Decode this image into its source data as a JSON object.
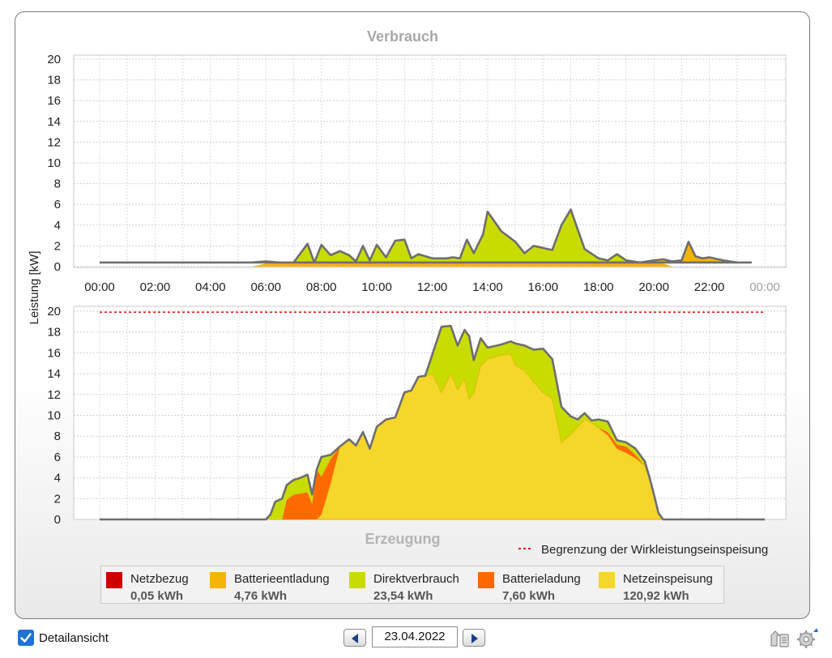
{
  "chart_data": [
    {
      "type": "area",
      "title": "Verbrauch",
      "ylabel": "Leistung [kW]",
      "ylim": [
        0,
        20
      ],
      "yticks": [
        "0",
        "2",
        "4",
        "6",
        "8",
        "10",
        "12",
        "14",
        "16",
        "18",
        "20"
      ],
      "xlim": [
        "00:00",
        "24:00"
      ],
      "xticks": [
        "00:00",
        "02:00",
        "04:00",
        "06:00",
        "08:00",
        "10:00",
        "12:00",
        "14:00",
        "16:00",
        "18:00",
        "20:00",
        "22:00",
        "00:00"
      ],
      "grid": true,
      "stacked": true,
      "x": [
        "00:00",
        "00:30",
        "01:00",
        "01:30",
        "02:00",
        "02:30",
        "03:00",
        "03:30",
        "04:00",
        "04:30",
        "05:00",
        "05:30",
        "06:00",
        "06:30",
        "07:00",
        "07:30",
        "07:45",
        "08:00",
        "08:20",
        "08:40",
        "09:00",
        "09:15",
        "09:30",
        "09:45",
        "10:00",
        "10:20",
        "10:40",
        "11:00",
        "11:15",
        "11:30",
        "12:00",
        "12:30",
        "12:45",
        "13:00",
        "13:15",
        "13:30",
        "13:50",
        "14:00",
        "14:30",
        "15:00",
        "15:20",
        "15:40",
        "16:00",
        "16:20",
        "16:40",
        "17:00",
        "17:30",
        "18:00",
        "18:20",
        "18:40",
        "19:00",
        "19:30",
        "20:00",
        "20:20",
        "20:40",
        "21:00",
        "21:15",
        "21:30",
        "21:45",
        "22:00",
        "22:30",
        "23:00",
        "23:30",
        "00:00"
      ],
      "series": [
        {
          "name": "Direktverbrauch",
          "color": "#c8dc00",
          "values": [
            0,
            0,
            0,
            0,
            0,
            0,
            0,
            0,
            0,
            0,
            0,
            0,
            0.3,
            0.4,
            0.4,
            2.2,
            0.4,
            2.1,
            1.1,
            1.5,
            1.1,
            0.5,
            2.0,
            0.6,
            2.1,
            0.9,
            2.5,
            2.6,
            0.8,
            1.2,
            0.8,
            0.8,
            0.9,
            0.8,
            2.6,
            1.3,
            3.1,
            5.3,
            3.4,
            2.4,
            1.3,
            2.0,
            1.8,
            1.6,
            4.0,
            5.5,
            1.7,
            0.8,
            0.6,
            1.2,
            0.6,
            0.4,
            0.4,
            0.3,
            0,
            0,
            0,
            0,
            0,
            0,
            0,
            0,
            0,
            0
          ]
        },
        {
          "name": "Batterieentladung",
          "color": "#f5b400",
          "values": [
            0.4,
            0.4,
            0.4,
            0.4,
            0.4,
            0.4,
            0.4,
            0.4,
            0.4,
            0.4,
            0.4,
            0.4,
            0.2,
            0,
            0,
            0,
            0,
            0,
            0,
            0,
            0,
            0,
            0,
            0,
            0,
            0,
            0,
            0,
            0,
            0,
            0,
            0,
            0,
            0,
            0,
            0,
            0,
            0,
            0,
            0,
            0,
            0,
            0,
            0,
            0,
            0,
            0,
            0,
            0,
            0,
            0,
            0,
            0.2,
            0.4,
            0.5,
            0.6,
            2.4,
            1.0,
            0.8,
            0.9,
            0.6,
            0.4,
            0.4,
            0.4
          ]
        },
        {
          "name": "Netzbezug",
          "color": "#cc0000",
          "values": [
            0,
            0,
            0,
            0,
            0,
            0,
            0,
            0,
            0,
            0,
            0,
            0,
            0,
            0,
            0,
            0,
            0,
            0,
            0,
            0,
            0,
            0,
            0,
            0,
            0,
            0,
            0,
            0,
            0,
            0,
            0,
            0,
            0,
            0,
            0,
            0,
            0,
            0,
            0,
            0,
            0,
            0,
            0,
            0,
            0,
            0,
            0,
            0,
            0,
            0,
            0,
            0,
            0,
            0,
            0,
            0,
            0,
            0,
            0,
            0,
            0,
            0,
            0,
            0
          ]
        }
      ]
    },
    {
      "type": "area",
      "title": "Erzeugung",
      "ylabel": "Leistung [kW]",
      "ylim": [
        0,
        20
      ],
      "yticks": [
        "0",
        "2",
        "4",
        "6",
        "8",
        "10",
        "12",
        "14",
        "16",
        "18",
        "20"
      ],
      "grid": true,
      "stacked": true,
      "reference_line": {
        "name": "Begrenzung der Wirkleistungseinspeisung",
        "value": 19.9,
        "color": "#d92020",
        "style": "dotted"
      },
      "x": [
        "00:00",
        "05:00",
        "05:30",
        "05:50",
        "06:00",
        "06:10",
        "06:20",
        "06:35",
        "06:45",
        "07:00",
        "07:15",
        "07:30",
        "07:40",
        "07:50",
        "08:00",
        "08:20",
        "08:40",
        "09:00",
        "09:15",
        "09:30",
        "09:45",
        "10:00",
        "10:20",
        "10:40",
        "11:00",
        "11:15",
        "11:30",
        "11:45",
        "12:00",
        "12:20",
        "12:40",
        "12:55",
        "13:10",
        "13:20",
        "13:30",
        "13:45",
        "14:00",
        "14:30",
        "14:50",
        "15:00",
        "15:20",
        "15:40",
        "16:00",
        "16:20",
        "16:40",
        "17:00",
        "17:15",
        "17:30",
        "17:45",
        "18:00",
        "18:20",
        "18:40",
        "19:00",
        "19:20",
        "19:40",
        "19:50",
        "20:00",
        "20:10",
        "20:20",
        "24:00"
      ],
      "series": [
        {
          "name": "Netzeinspeisung",
          "color": "#f5d62a",
          "values": [
            0,
            0,
            0,
            0,
            0,
            0,
            0,
            0,
            0,
            0,
            0,
            0,
            0,
            0,
            0.5,
            3.5,
            7.0,
            7.7,
            7.1,
            8.4,
            6.8,
            8.9,
            9.6,
            9.8,
            12.2,
            12.4,
            13.7,
            13.8,
            14.0,
            12.2,
            14.0,
            12.5,
            13.5,
            11.6,
            12.1,
            14.8,
            15.4,
            15.8,
            15.9,
            14.8,
            14.3,
            13.2,
            12.2,
            11.6,
            7.4,
            8.2,
            8.9,
            9.6,
            9.3,
            8.8,
            8.1,
            6.8,
            6.4,
            5.9,
            5.2,
            4.0,
            2.4,
            0.6,
            0,
            0
          ]
        },
        {
          "name": "Batterieladung",
          "color": "#ff6a00",
          "values": [
            0,
            0,
            0,
            0,
            0,
            0,
            0,
            0,
            1.9,
            2.4,
            2.5,
            2.6,
            1.5,
            4.8,
            3.6,
            2.3,
            0,
            0,
            0,
            0,
            0,
            0,
            0,
            0,
            0,
            0,
            0,
            0,
            0,
            0,
            0,
            0,
            0,
            0,
            0,
            0,
            0,
            0,
            0,
            0,
            0,
            0,
            0,
            0,
            0,
            0,
            0,
            0,
            0,
            0,
            0.3,
            0.4,
            0.6,
            0.3,
            0,
            0,
            0,
            0,
            0,
            0
          ]
        },
        {
          "name": "Direktverbrauch",
          "color": "#c8dc00",
          "values": [
            0,
            0,
            0,
            0,
            0,
            0.5,
            1.7,
            2.0,
            1.4,
            1.4,
            1.5,
            1.7,
            0.9,
            0,
            1.9,
            0.4,
            0,
            0,
            0,
            0,
            0,
            0,
            0,
            0,
            0,
            0,
            0,
            0,
            1.8,
            6.3,
            4.6,
            4.2,
            4.7,
            6.0,
            3.2,
            2.6,
            1.1,
            1.0,
            1.2,
            2.1,
            2.4,
            3.1,
            4.2,
            3.8,
            3.4,
            1.7,
            0.7,
            0.6,
            0.2,
            0.8,
            1.0,
            0.4,
            0.4,
            0.6,
            0.4,
            0.1,
            0,
            0,
            0,
            0
          ]
        }
      ]
    }
  ],
  "legend": [
    {
      "name": "Netzbezug",
      "value": "0,05 kWh",
      "color": "#cc0000"
    },
    {
      "name": "Batterieentladung",
      "value": "4,76 kWh",
      "color": "#f5b400"
    },
    {
      "name": "Direktverbrauch",
      "value": "23,54 kWh",
      "color": "#c8dc00"
    },
    {
      "name": "Batterieladung",
      "value": "7,60 kWh",
      "color": "#ff6a00"
    },
    {
      "name": "Netzeinspeisung",
      "value": "120,92 kWh",
      "color": "#f5d62a"
    }
  ],
  "controls": {
    "detail_label": "Detailansicht",
    "detail_checked": true,
    "date": "23.04.2022",
    "prev_icon": "arrow-left-icon",
    "next_icon": "arrow-right-icon",
    "export_icon": "export-icon",
    "settings_icon": "settings-icon"
  }
}
